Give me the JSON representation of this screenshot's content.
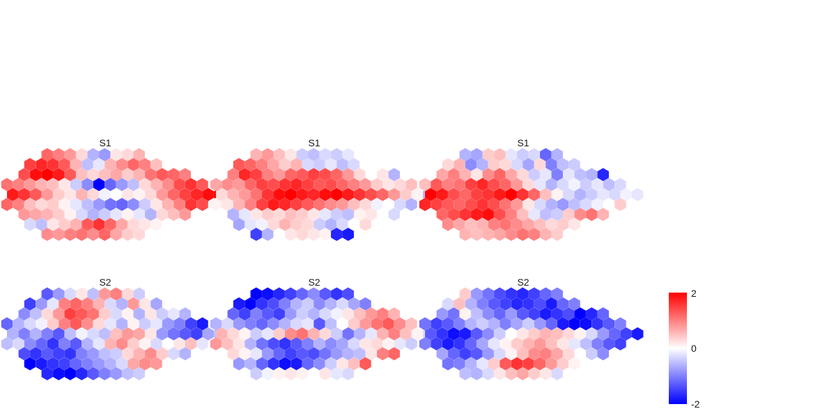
{
  "chart_data": {
    "type": "heatmap",
    "grid": false,
    "legend_placement": "right",
    "color_scale": {
      "min": -2,
      "mid": 0,
      "max": 2,
      "low_color": "#0000ff",
      "mid_color": "#ffffff",
      "high_color": "#ff0000",
      "ticks": [
        "2",
        "0",
        "-2"
      ]
    },
    "hex_rows": [
      {
        "offset": 3,
        "count": 9
      },
      {
        "offset": 2,
        "count": 12
      },
      {
        "offset": 1,
        "count": 15
      },
      {
        "offset": 0,
        "count": 18
      },
      {
        "offset": 0,
        "count": 19
      },
      {
        "offset": 0,
        "count": 18
      },
      {
        "offset": 1,
        "count": 15
      },
      {
        "offset": 2,
        "count": 12
      },
      {
        "offset": 3,
        "count": 9
      }
    ],
    "panels": [
      {
        "title": "S1",
        "values": [
          [
            1.2,
            1.0,
            0.8,
            0.3,
            -0.6,
            -0.8,
            0.2,
            0.3,
            0.6
          ],
          [
            1.5,
            1.7,
            1.6,
            1.3,
            0.6,
            -0.5,
            -0.2,
            0.6,
            0.9,
            1.2,
            1.0,
            0.5
          ],
          [
            1.4,
            1.9,
            2.0,
            1.8,
            1.3,
            0.5,
            0.3,
            0.5,
            0.7,
            0.4,
            0.6,
            1.1,
            1.3,
            1.2,
            1.0
          ],
          [
            1.1,
            1.0,
            0.8,
            0.6,
            0.5,
            0.2,
            -0.4,
            -0.9,
            -2.0,
            -1.2,
            -0.8,
            -0.5,
            0.3,
            0.6,
            0.9,
            1.4,
            1.6,
            1.3
          ],
          [
            1.8,
            1.6,
            1.3,
            0.8,
            0.4,
            0.2,
            0.6,
            0.3,
            -0.1,
            0.0,
            0.2,
            0.1,
            0.3,
            0.8,
            1.2,
            1.5,
            1.7,
            1.9,
            2.0
          ],
          [
            1.2,
            1.0,
            0.5,
            0.3,
            0.4,
            0.1,
            -0.2,
            -0.5,
            -0.8,
            -1.1,
            -1.2,
            -0.9,
            -0.4,
            0.2,
            0.6,
            1.0,
            1.6,
            1.4
          ],
          [
            0.8,
            0.7,
            0.6,
            0.4,
            0.1,
            -0.3,
            -0.6,
            -0.4,
            -0.2,
            0.1,
            -0.2,
            -0.6,
            0.3,
            0.5,
            0.8
          ],
          [
            -0.3,
            -0.5,
            0.2,
            0.4,
            0.6,
            1.3,
            1.6,
            1.2,
            0.7,
            0.3,
            0.2,
            0.1
          ],
          [
            0.9,
            0.8,
            1.0,
            1.1,
            0.9,
            1.2,
            0.7,
            0.4,
            0.3
          ]
        ]
      },
      {
        "title": "S1",
        "values": [
          [
            0.6,
            0.8,
            0.5,
            0.2,
            -0.4,
            -0.5,
            -0.3,
            -0.4,
            -0.2
          ],
          [
            1.3,
            1.2,
            1.0,
            0.7,
            0.4,
            0.6,
            -0.3,
            -0.4,
            -0.2,
            -0.5,
            -0.3,
            0.0
          ],
          [
            1.0,
            1.7,
            1.5,
            1.0,
            0.8,
            1.2,
            1.3,
            1.5,
            1.4,
            1.2,
            0.8,
            0.3,
            0.0,
            0.2,
            -0.6
          ],
          [
            0.7,
            0.9,
            0.8,
            1.2,
            1.5,
            1.4,
            1.6,
            1.7,
            1.5,
            1.3,
            1.4,
            1.2,
            1.0,
            0.8,
            0.4,
            0.2,
            0.3,
            0.5
          ],
          [
            0.3,
            0.6,
            0.8,
            1.1,
            1.6,
            1.9,
            2.0,
            1.8,
            1.7,
            1.9,
            2.0,
            1.8,
            1.6,
            1.4,
            1.2,
            0.8,
            0.4,
            0.1,
            -0.6
          ],
          [
            0.1,
            0.2,
            0.6,
            1.0,
            1.5,
            1.8,
            1.7,
            1.5,
            1.3,
            1.1,
            0.9,
            0.8,
            0.5,
            0.3,
            -0.1,
            0.0,
            -0.3,
            -0.6
          ],
          [
            -0.6,
            -0.2,
            0.2,
            0.4,
            0.3,
            0.5,
            0.4,
            0.2,
            -0.2,
            -0.4,
            -0.5,
            0.1,
            0.2,
            0.0,
            -0.3
          ],
          [
            -0.7,
            -0.2,
            -0.1,
            0.3,
            0.6,
            0.4,
            0.3,
            -0.4,
            -0.6,
            -0.3,
            0.0,
            0.3
          ],
          [
            -1.5,
            -0.6,
            0.0,
            0.2,
            0.3,
            0.2,
            0.1,
            -1.7,
            -1.8
          ]
        ]
      },
      {
        "title": "S1",
        "values": [
          [
            -0.6,
            -0.7,
            0.4,
            0.5,
            -0.2,
            -0.4,
            -0.3,
            -1.2,
            -0.6
          ],
          [
            0.3,
            0.6,
            -0.9,
            -0.6,
            0.4,
            0.3,
            -0.3,
            -0.7,
            0.3,
            -1.0,
            -0.5,
            -0.4
          ],
          [
            0.7,
            1.0,
            0.6,
            0.2,
            0.9,
            1.2,
            0.7,
            0.3,
            -0.4,
            -0.2,
            -1.0,
            -0.2,
            -0.5,
            -0.6,
            -1.7
          ],
          [
            0.5,
            1.3,
            1.0,
            1.1,
            1.5,
            1.7,
            1.4,
            1.2,
            0.8,
            0.3,
            -0.2,
            -0.6,
            -0.3,
            -0.1,
            -0.4,
            -0.2,
            -0.5,
            -0.3
          ],
          [
            2.0,
            1.8,
            1.4,
            1.2,
            1.5,
            1.6,
            1.8,
            2.0,
            1.6,
            1.2,
            0.5,
            0.1,
            -0.3,
            -0.6,
            -0.4,
            -0.2,
            -0.3,
            -0.1,
            -0.2
          ],
          [
            1.7,
            1.5,
            1.3,
            1.2,
            1.4,
            1.6,
            1.4,
            1.1,
            0.8,
            0.2,
            -0.3,
            -0.6,
            -0.8,
            -0.5,
            -0.3,
            -0.1,
            0.0,
            0.4
          ],
          [
            1.2,
            1.4,
            1.6,
            1.8,
            1.9,
            1.4,
            1.0,
            0.5,
            -0.2,
            -0.5,
            -0.4,
            0.4,
            0.9,
            1.1,
            0.6
          ],
          [
            0.9,
            0.7,
            0.5,
            0.6,
            1.0,
            1.1,
            0.9,
            0.7,
            0.5,
            0.3,
            0.4,
            0.2
          ],
          [
            0.6,
            0.5,
            0.6,
            0.7,
            0.9,
            1.1,
            1.0,
            0.6,
            0.4
          ]
        ]
      },
      {
        "title": "S2",
        "values": [
          [
            -1.3,
            -0.8,
            -0.3,
            0.2,
            -0.5,
            0.8,
            1.0,
            0.3,
            -0.4
          ],
          [
            -1.5,
            -0.8,
            -0.2,
            1.0,
            1.2,
            1.0,
            0.6,
            -0.3,
            -0.6,
            0.8,
            0.2,
            -0.7
          ],
          [
            -0.9,
            -0.5,
            0.3,
            0.8,
            1.5,
            1.3,
            1.1,
            0.4,
            -0.3,
            0.1,
            -0.6,
            0.2,
            -0.4,
            -0.2,
            -0.6
          ],
          [
            -1.2,
            -0.6,
            -0.3,
            -0.1,
            0.4,
            1.0,
            1.3,
            0.9,
            0.3,
            -0.2,
            -0.6,
            0.1,
            -0.4,
            -0.2,
            -0.8,
            -1.0,
            -1.5,
            -1.8
          ],
          [
            -0.6,
            -1.0,
            -0.6,
            -1.0,
            -1.3,
            -0.5,
            -0.1,
            -0.3,
            -0.5,
            0.5,
            0.8,
            0.7,
            0.2,
            -0.8,
            -1.1,
            -1.3,
            -1.5,
            -0.7,
            -0.5
          ],
          [
            -0.5,
            -0.3,
            -0.9,
            -1.2,
            -1.6,
            -1.0,
            -1.3,
            -0.6,
            -0.2,
            0.6,
            0.9,
            0.4,
            0.1,
            -0.3,
            0.0,
            0.2,
            0.5,
            -0.2
          ],
          [
            -1.4,
            -1.6,
            -1.3,
            -1.5,
            -1.6,
            -1.0,
            -0.8,
            -0.5,
            -0.4,
            0.3,
            0.6,
            0.9,
            0.4,
            -0.3,
            -0.6
          ],
          [
            -2.0,
            -1.8,
            -1.6,
            -1.5,
            -1.2,
            -1.0,
            -0.8,
            -0.6,
            -0.3,
            0.7,
            0.9,
            0.8
          ],
          [
            -1.7,
            -1.9,
            -2.0,
            -1.7,
            -1.3,
            -1.0,
            -0.8,
            -0.5,
            -0.4
          ]
        ]
      },
      {
        "title": "S2",
        "values": [
          [
            -2.0,
            -1.9,
            -1.7,
            -1.5,
            -1.2,
            -0.9,
            -1.3,
            -1.6,
            -1.4
          ],
          [
            -1.8,
            -2.0,
            -1.6,
            -1.4,
            -1.0,
            -0.6,
            -0.4,
            -0.9,
            -0.6,
            -0.3,
            -0.7,
            -1.0
          ],
          [
            -1.2,
            -1.5,
            -1.0,
            -1.3,
            -1.5,
            -0.8,
            -0.4,
            -0.6,
            -0.3,
            -0.1,
            0.2,
            0.5,
            0.8,
            1.0,
            0.6
          ],
          [
            -0.6,
            -0.3,
            -0.8,
            -1.0,
            -1.2,
            -0.9,
            -0.6,
            -0.3,
            -0.2,
            -1.3,
            -0.5,
            0.0,
            0.4,
            0.8,
            1.1,
            1.3,
            0.9,
            0.5
          ],
          [
            0.6,
            0.3,
            0.1,
            -0.4,
            -0.2,
            0.4,
            0.9,
            1.1,
            0.6,
            0.3,
            -0.4,
            -1.1,
            -0.6,
            -0.2,
            0.6,
            1.0,
            0.5,
            0.1,
            -0.3
          ],
          [
            0.8,
            0.5,
            0.2,
            -0.6,
            -1.1,
            -1.4,
            -1.6,
            -1.3,
            -1.0,
            -0.6,
            -0.9,
            -0.7,
            -0.3,
            0.2,
            0.3,
            0.1,
            -0.2,
            -0.4
          ],
          [
            0.3,
            0.1,
            -0.2,
            -0.8,
            -1.2,
            -1.5,
            -1.3,
            -1.4,
            -1.1,
            -0.8,
            -0.6,
            -0.5,
            0.2,
            1.0,
            1.2
          ],
          [
            -0.8,
            -0.6,
            -1.2,
            -1.6,
            -1.9,
            -1.8,
            -1.2,
            -0.9,
            -0.4,
            0.2,
            0.5,
            1.3
          ],
          [
            -0.4,
            -0.1,
            0.1,
            0.2,
            0.1,
            0.0,
            0.2,
            -0.2,
            -0.3
          ]
        ]
      },
      {
        "title": "S2",
        "values": [
          [
            0.4,
            -0.8,
            -1.1,
            -1.4,
            -1.6,
            -1.7,
            -1.5,
            -1.2,
            -1.0
          ],
          [
            -0.3,
            0.5,
            -0.6,
            -1.0,
            -1.3,
            -1.5,
            -1.7,
            -1.6,
            -1.4,
            -1.8,
            -1.2,
            -1.0
          ],
          [
            -0.8,
            -1.1,
            0.1,
            -0.5,
            -0.9,
            -1.2,
            -0.8,
            -1.3,
            -1.5,
            -1.8,
            -1.6,
            -1.4,
            -2.0,
            -1.7,
            -1.2
          ],
          [
            -1.1,
            -1.5,
            -1.3,
            -1.0,
            -0.6,
            -0.4,
            -0.6,
            -1.0,
            -0.7,
            -0.4,
            -0.8,
            -1.2,
            -1.8,
            -2.0,
            -1.9,
            -1.6,
            -1.3,
            -1.0
          ],
          [
            -1.3,
            -1.6,
            -1.9,
            -1.8,
            -1.3,
            -0.9,
            -0.4,
            0.0,
            0.2,
            0.4,
            0.6,
            0.5,
            0.3,
            0.1,
            -0.3,
            -0.8,
            -1.2,
            -1.5,
            -1.8
          ],
          [
            -1.0,
            -1.5,
            -1.8,
            -1.6,
            -1.2,
            -0.7,
            -0.2,
            0.1,
            0.4,
            0.6,
            0.8,
            0.5,
            0.2,
            -0.2,
            -0.5,
            -1.0,
            -1.3,
            -1.5
          ],
          [
            -0.7,
            -1.2,
            -1.5,
            -1.3,
            -0.8,
            -0.3,
            0.1,
            0.5,
            0.9,
            1.0,
            0.7,
            0.3,
            0.0,
            -0.4,
            -0.9
          ],
          [
            -1.1,
            -1.0,
            -0.6,
            -0.2,
            0.4,
            1.3,
            1.6,
            1.5,
            1.2,
            0.8,
            0.4,
            0.1
          ],
          [
            -0.5,
            -0.6,
            -0.3,
            0.2,
            0.5,
            0.7,
            0.4,
            0.2,
            -0.3
          ]
        ]
      }
    ]
  }
}
